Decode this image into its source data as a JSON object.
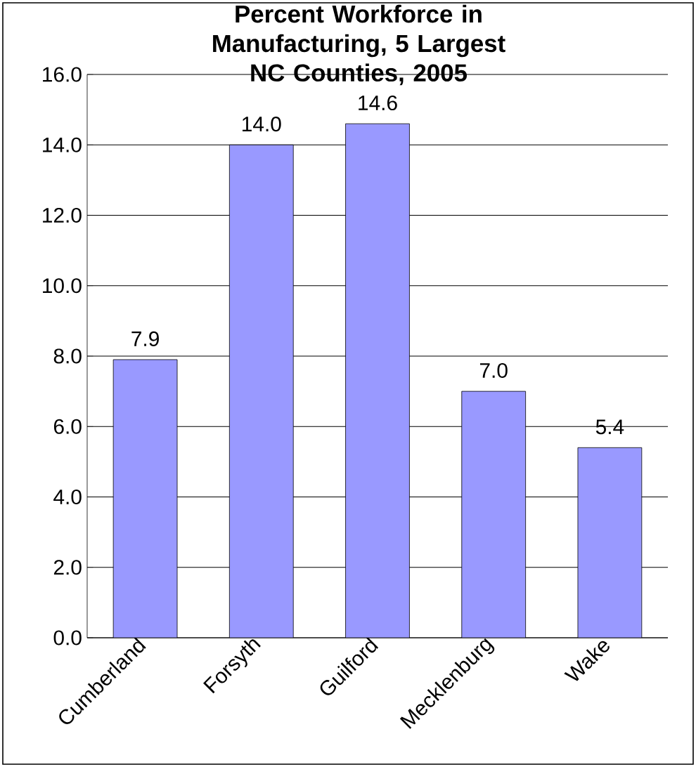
{
  "chart_data": {
    "type": "bar",
    "title": "Percent Workforce in Manufacturing, 5 Largest NC Counties, 2005",
    "categories": [
      "Cumberland",
      "Forsyth",
      "Guilford",
      "Mecklenburg",
      "Wake"
    ],
    "values": [
      7.9,
      14.0,
      14.6,
      7.0,
      5.4
    ],
    "value_labels": [
      "7.9",
      "14.0",
      "14.6",
      "7.0",
      "5.4"
    ],
    "color": "#9999ff",
    "ylim": [
      0,
      16
    ],
    "yticks": [
      {
        "value": 0,
        "label": "0.0"
      },
      {
        "value": 2,
        "label": "2.0"
      },
      {
        "value": 4,
        "label": "4.0"
      },
      {
        "value": 6,
        "label": "6.0"
      },
      {
        "value": 8,
        "label": "8.0"
      },
      {
        "value": 10,
        "label": "10.0"
      },
      {
        "value": 12,
        "label": "12.0"
      },
      {
        "value": 14,
        "label": "14.0"
      },
      {
        "value": 16,
        "label": "16.0"
      }
    ],
    "grid": "y"
  }
}
